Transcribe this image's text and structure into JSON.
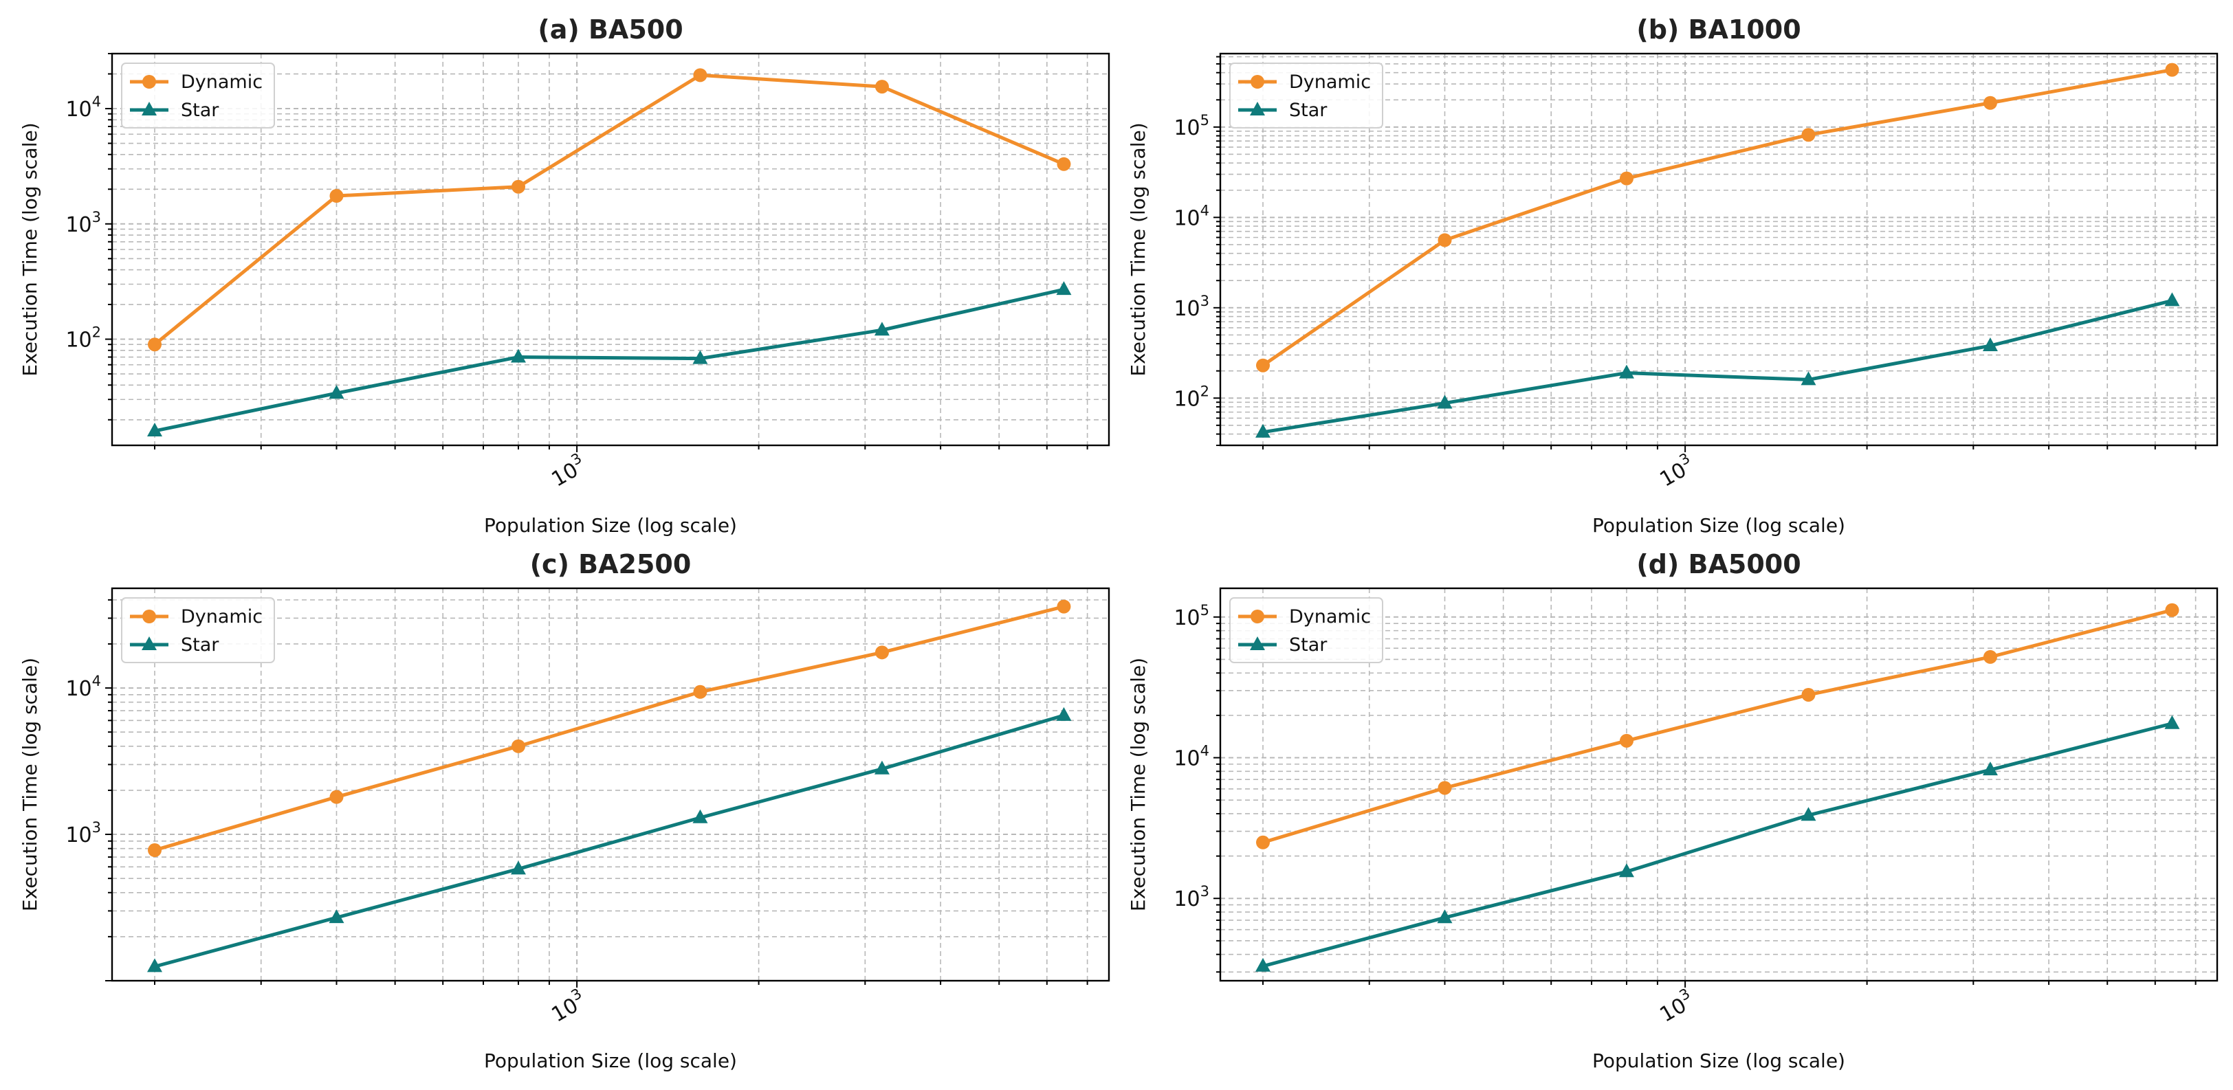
{
  "chart_data": [
    {
      "type": "line",
      "title": "(a) BA500",
      "xlabel": "Population Size (log scale)",
      "ylabel": "Execution Time (log scale)",
      "xscale": "log",
      "yscale": "log",
      "x": [
        200,
        400,
        800,
        1600,
        3200,
        6400
      ],
      "xlim": [
        170,
        7600
      ],
      "ylim": [
        12,
        30000
      ],
      "xticks": [
        {
          "value": 1000,
          "label": "10",
          "exp": "3"
        }
      ],
      "yticks": [
        {
          "value": 100,
          "label": "10",
          "exp": "2"
        },
        {
          "value": 1000,
          "label": "10",
          "exp": "3"
        },
        {
          "value": 10000,
          "label": "10",
          "exp": "4"
        }
      ],
      "legend": "top-left",
      "grid": true,
      "series": [
        {
          "name": "Dynamic",
          "color": "#f28e2b",
          "marker": "circle",
          "values": [
            90,
            1750,
            2100,
            19500,
            15500,
            3300
          ]
        },
        {
          "name": "Star",
          "color": "#0f7b7b",
          "marker": "triangle",
          "values": [
            16,
            34,
            70,
            68,
            120,
            270
          ]
        }
      ]
    },
    {
      "type": "line",
      "title": "(b) BA1000",
      "xlabel": "Population Size (log scale)",
      "ylabel": "Execution Time (log scale)",
      "xscale": "log",
      "yscale": "log",
      "x": [
        200,
        400,
        800,
        1600,
        3200,
        6400
      ],
      "xlim": [
        170,
        7600
      ],
      "ylim": [
        30,
        650000
      ],
      "xticks": [
        {
          "value": 1000,
          "label": "10",
          "exp": "3"
        }
      ],
      "yticks": [
        {
          "value": 100,
          "label": "10",
          "exp": "2"
        },
        {
          "value": 1000,
          "label": "10",
          "exp": "3"
        },
        {
          "value": 10000,
          "label": "10",
          "exp": "4"
        },
        {
          "value": 100000,
          "label": "10",
          "exp": "5"
        }
      ],
      "legend": "top-left",
      "grid": true,
      "series": [
        {
          "name": "Dynamic",
          "color": "#f28e2b",
          "marker": "circle",
          "values": [
            230,
            5600,
            27000,
            82000,
            185000,
            430000
          ]
        },
        {
          "name": "Star",
          "color": "#0f7b7b",
          "marker": "triangle",
          "values": [
            42,
            88,
            190,
            160,
            380,
            1200
          ]
        }
      ]
    },
    {
      "type": "line",
      "title": "(c) BA2500",
      "xlabel": "Population Size (log scale)",
      "ylabel": "Execution Time (log scale)",
      "xscale": "log",
      "yscale": "log",
      "x": [
        200,
        400,
        800,
        1600,
        3200,
        6400
      ],
      "xlim": [
        170,
        7600
      ],
      "ylim": [
        100,
        48000
      ],
      "xticks": [
        {
          "value": 1000,
          "label": "10",
          "exp": "3"
        }
      ],
      "yticks": [
        {
          "value": 1000,
          "label": "10",
          "exp": "3"
        },
        {
          "value": 10000,
          "label": "10",
          "exp": "4"
        }
      ],
      "legend": "top-left",
      "grid": true,
      "series": [
        {
          "name": "Dynamic",
          "color": "#f28e2b",
          "marker": "circle",
          "values": [
            780,
            1800,
            4000,
            9400,
            17500,
            36000
          ]
        },
        {
          "name": "Star",
          "color": "#0f7b7b",
          "marker": "triangle",
          "values": [
            125,
            270,
            580,
            1300,
            2800,
            6500
          ]
        }
      ]
    },
    {
      "type": "line",
      "title": "(d) BA5000",
      "xlabel": "Population Size (log scale)",
      "ylabel": "Execution Time (log scale)",
      "xscale": "log",
      "yscale": "log",
      "x": [
        200,
        400,
        800,
        1600,
        3200,
        6400
      ],
      "xlim": [
        170,
        7600
      ],
      "ylim": [
        260,
        160000
      ],
      "xticks": [
        {
          "value": 1000,
          "label": "10",
          "exp": "3"
        }
      ],
      "yticks": [
        {
          "value": 1000,
          "label": "10",
          "exp": "3"
        },
        {
          "value": 10000,
          "label": "10",
          "exp": "4"
        },
        {
          "value": 100000,
          "label": "10",
          "exp": "5"
        }
      ],
      "legend": "top-left",
      "grid": true,
      "series": [
        {
          "name": "Dynamic",
          "color": "#f28e2b",
          "marker": "circle",
          "values": [
            2500,
            6100,
            13200,
            28000,
            52000,
            112000
          ]
        },
        {
          "name": "Star",
          "color": "#0f7b7b",
          "marker": "triangle",
          "values": [
            330,
            730,
            1550,
            3900,
            8200,
            17500
          ]
        }
      ]
    }
  ]
}
